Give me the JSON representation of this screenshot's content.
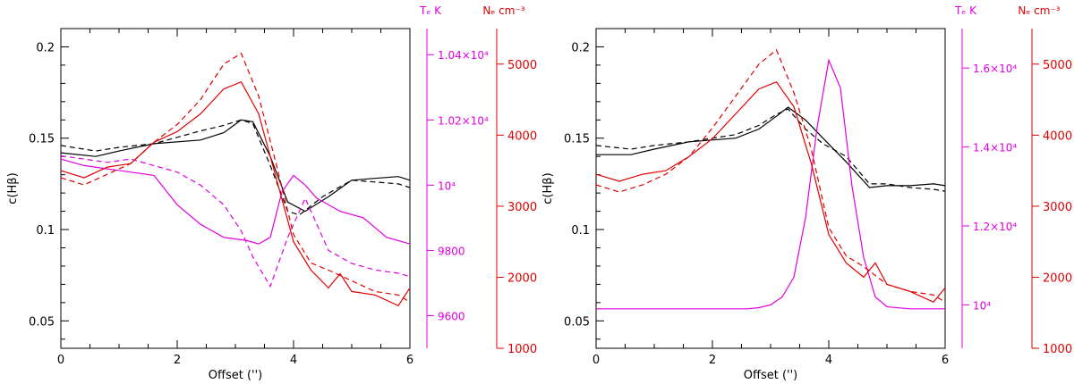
{
  "colors": {
    "black": "#000000",
    "magenta": "#e000e0",
    "red": "#e00000"
  },
  "chart_data": [
    {
      "type": "line",
      "xlabel": "Offset ('')",
      "ylabel": "c(Hβ)",
      "xlim": [
        0,
        6
      ],
      "ylim": [
        0.035,
        0.21
      ],
      "x_ticks": [
        "0",
        "2",
        "4",
        "6"
      ],
      "y_ticks": [
        "0.05",
        "0.1",
        "0.15",
        "0.2"
      ],
      "te_axis": {
        "label": "Tₑ K",
        "range": [
          9500,
          10480
        ],
        "ticks": [
          {
            "value": 9600,
            "label": "9600"
          },
          {
            "value": 9800,
            "label": "9800"
          },
          {
            "value": 10000,
            "label": "10⁴"
          },
          {
            "value": 10200,
            "label": "1.02×10⁴"
          },
          {
            "value": 10400,
            "label": "1.04×10⁴"
          }
        ]
      },
      "ne_axis": {
        "label": "Nₑ cm⁻³",
        "range": [
          1000,
          5500
        ],
        "ticks": [
          {
            "value": 1000,
            "label": "1000"
          },
          {
            "value": 2000,
            "label": "2000"
          },
          {
            "value": 3000,
            "label": "3000"
          },
          {
            "value": 4000,
            "label": "4000"
          },
          {
            "value": 5000,
            "label": "5000"
          }
        ]
      },
      "series": [
        {
          "name": "c(Hbeta) solid",
          "axis": "c",
          "color": "black",
          "dash": false,
          "x": [
            0,
            0.6,
            1.0,
            1.6,
            2.4,
            2.8,
            3.1,
            3.3,
            3.6,
            3.9,
            4.2,
            4.6,
            5.0,
            5.4,
            5.8,
            6.0
          ],
          "y": [
            0.142,
            0.14,
            0.143,
            0.147,
            0.149,
            0.153,
            0.16,
            0.159,
            0.14,
            0.115,
            0.11,
            0.118,
            0.127,
            0.128,
            0.129,
            0.127
          ]
        },
        {
          "name": "c(Hbeta) dashed",
          "axis": "c",
          "color": "black",
          "dash": true,
          "x": [
            0,
            0.6,
            1.0,
            1.6,
            2.4,
            2.8,
            3.1,
            3.3,
            3.6,
            3.9,
            4.1,
            4.5,
            5.0,
            5.4,
            5.8,
            6.0
          ],
          "y": [
            0.146,
            0.143,
            0.145,
            0.147,
            0.154,
            0.157,
            0.16,
            0.158,
            0.135,
            0.11,
            0.108,
            0.118,
            0.127,
            0.126,
            0.125,
            0.123
          ]
        },
        {
          "name": "Te solid",
          "axis": "te",
          "color": "magenta",
          "dash": false,
          "x": [
            0,
            0.4,
            0.8,
            1.2,
            1.6,
            2.0,
            2.4,
            2.8,
            3.2,
            3.4,
            3.6,
            3.8,
            4.0,
            4.2,
            4.4,
            4.8,
            5.2,
            5.6,
            6.0
          ],
          "y": [
            10080,
            10060,
            10050,
            10040,
            10030,
            9940,
            9880,
            9840,
            9830,
            9820,
            9840,
            9980,
            10030,
            10000,
            9960,
            9920,
            9900,
            9840,
            9820
          ]
        },
        {
          "name": "Te dashed",
          "axis": "te",
          "color": "magenta",
          "dash": true,
          "x": [
            0,
            0.4,
            0.8,
            1.2,
            1.6,
            2.0,
            2.4,
            2.8,
            3.1,
            3.3,
            3.6,
            3.9,
            4.2,
            4.6,
            5.0,
            5.4,
            5.8,
            6.0
          ],
          "y": [
            10090,
            10080,
            10070,
            10080,
            10060,
            10040,
            10000,
            9940,
            9860,
            9780,
            9690,
            9840,
            9960,
            9800,
            9760,
            9740,
            9730,
            9720
          ]
        },
        {
          "name": "Ne solid",
          "axis": "ne",
          "color": "red",
          "dash": false,
          "x": [
            0,
            0.4,
            0.8,
            1.2,
            1.6,
            2.0,
            2.4,
            2.8,
            3.1,
            3.4,
            3.7,
            4.0,
            4.3,
            4.6,
            4.8,
            5.0,
            5.4,
            5.8,
            6.0
          ],
          "y": [
            3500,
            3400,
            3550,
            3600,
            3900,
            4050,
            4300,
            4650,
            4750,
            4300,
            3400,
            2500,
            2100,
            1850,
            2050,
            1800,
            1750,
            1600,
            1850
          ]
        },
        {
          "name": "Ne dashed",
          "axis": "ne",
          "color": "red",
          "dash": true,
          "x": [
            0,
            0.4,
            0.8,
            1.2,
            1.6,
            2.0,
            2.4,
            2.8,
            3.1,
            3.4,
            3.7,
            4.0,
            4.3,
            4.6,
            5.0,
            5.4,
            5.8,
            6.0
          ],
          "y": [
            3400,
            3300,
            3450,
            3600,
            3900,
            4150,
            4500,
            5000,
            5150,
            4550,
            3600,
            2600,
            2200,
            2100,
            1950,
            1800,
            1750,
            1650
          ]
        }
      ]
    },
    {
      "type": "line",
      "xlabel": "Offset ('')",
      "ylabel": "c(Hβ)",
      "xlim": [
        0,
        6
      ],
      "ylim": [
        0.035,
        0.21
      ],
      "x_ticks": [
        "0",
        "2",
        "4",
        "6"
      ],
      "y_ticks": [
        "0.05",
        "0.1",
        "0.15",
        "0.2"
      ],
      "te_axis": {
        "label": "Tₑ K",
        "range": [
          8900,
          17000
        ],
        "ticks": [
          {
            "value": 10000,
            "label": "10⁴"
          },
          {
            "value": 12000,
            "label": "1.2×10⁴"
          },
          {
            "value": 14000,
            "label": "1.4×10⁴"
          },
          {
            "value": 16000,
            "label": "1.6×10⁴"
          }
        ]
      },
      "ne_axis": {
        "label": "Nₑ cm⁻³",
        "range": [
          1000,
          5500
        ],
        "ticks": [
          {
            "value": 1000,
            "label": "1000"
          },
          {
            "value": 2000,
            "label": "2000"
          },
          {
            "value": 3000,
            "label": "3000"
          },
          {
            "value": 4000,
            "label": "4000"
          },
          {
            "value": 5000,
            "label": "5000"
          }
        ]
      },
      "series": [
        {
          "name": "c(Hbeta) solid",
          "axis": "c",
          "color": "black",
          "dash": false,
          "x": [
            0,
            0.6,
            1.0,
            1.6,
            2.4,
            2.8,
            3.1,
            3.3,
            3.6,
            3.9,
            4.3,
            4.7,
            5.0,
            5.4,
            5.8,
            6.0
          ],
          "y": [
            0.141,
            0.141,
            0.144,
            0.148,
            0.15,
            0.155,
            0.162,
            0.167,
            0.16,
            0.15,
            0.137,
            0.123,
            0.124,
            0.124,
            0.125,
            0.124
          ]
        },
        {
          "name": "c(Hbeta) dashed",
          "axis": "c",
          "color": "black",
          "dash": true,
          "x": [
            0,
            0.6,
            1.0,
            1.6,
            2.4,
            2.8,
            3.1,
            3.3,
            3.6,
            3.9,
            4.3,
            4.7,
            5.0,
            5.4,
            5.8,
            6.0
          ],
          "y": [
            0.146,
            0.144,
            0.146,
            0.148,
            0.152,
            0.157,
            0.163,
            0.166,
            0.155,
            0.147,
            0.14,
            0.125,
            0.125,
            0.123,
            0.122,
            0.121
          ]
        },
        {
          "name": "Te solid",
          "axis": "te",
          "color": "magenta",
          "dash": false,
          "x": [
            0,
            0.8,
            1.6,
            2.4,
            2.6,
            2.8,
            3.0,
            3.2,
            3.4,
            3.6,
            3.8,
            4.0,
            4.2,
            4.4,
            4.6,
            4.8,
            5.0,
            5.4,
            5.8,
            6.0
          ],
          "y": [
            9900,
            9900,
            9900,
            9900,
            9900,
            9930,
            10000,
            10200,
            10700,
            12200,
            14500,
            16200,
            15500,
            13000,
            11200,
            10200,
            9950,
            9900,
            9900,
            9900
          ]
        },
        {
          "name": "Ne solid",
          "axis": "ne",
          "color": "red",
          "dash": false,
          "x": [
            0,
            0.4,
            0.8,
            1.2,
            1.6,
            2.0,
            2.4,
            2.8,
            3.1,
            3.4,
            3.7,
            4.0,
            4.3,
            4.6,
            4.8,
            5.0,
            5.4,
            5.8,
            6.0
          ],
          "y": [
            3450,
            3350,
            3450,
            3500,
            3700,
            3950,
            4300,
            4650,
            4750,
            4400,
            3600,
            2600,
            2200,
            2000,
            2200,
            1900,
            1800,
            1650,
            1850
          ]
        },
        {
          "name": "Ne dashed",
          "axis": "ne",
          "color": "red",
          "dash": true,
          "x": [
            0,
            0.4,
            0.8,
            1.2,
            1.6,
            2.0,
            2.4,
            2.8,
            3.1,
            3.4,
            3.7,
            4.0,
            4.3,
            4.6,
            5.0,
            5.4,
            5.8,
            6.0
          ],
          "y": [
            3300,
            3200,
            3300,
            3450,
            3700,
            4100,
            4550,
            5000,
            5200,
            4600,
            3800,
            2700,
            2300,
            2150,
            1900,
            1800,
            1750,
            1650
          ]
        }
      ]
    }
  ]
}
